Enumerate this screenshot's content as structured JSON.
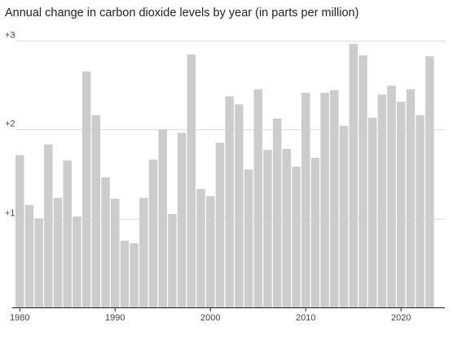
{
  "chart_data": {
    "type": "bar",
    "title": "Annual change in carbon dioxide levels by year (in parts per million)",
    "xlabel": "",
    "ylabel": "",
    "x": [
      1980,
      1981,
      1982,
      1983,
      1984,
      1985,
      1986,
      1987,
      1988,
      1989,
      1990,
      1991,
      1992,
      1993,
      1994,
      1995,
      1996,
      1997,
      1998,
      1999,
      2000,
      2001,
      2002,
      2003,
      2004,
      2005,
      2006,
      2007,
      2008,
      2009,
      2010,
      2011,
      2012,
      2013,
      2014,
      2015,
      2016,
      2017,
      2018,
      2019,
      2020,
      2021,
      2022,
      2023
    ],
    "values": [
      1.71,
      1.15,
      1.0,
      1.83,
      1.23,
      1.65,
      1.02,
      2.65,
      2.16,
      1.46,
      1.22,
      0.75,
      0.72,
      1.23,
      1.66,
      2.0,
      1.05,
      1.96,
      2.84,
      1.33,
      1.25,
      1.85,
      2.37,
      2.28,
      1.55,
      2.45,
      1.77,
      2.12,
      1.78,
      1.58,
      2.41,
      1.68,
      2.41,
      2.44,
      2.04,
      2.96,
      2.83,
      2.13,
      2.39,
      2.49,
      2.31,
      2.45,
      2.16,
      2.82
    ],
    "ylim": [
      0,
      3.2
    ],
    "y_ticks": [
      {
        "value": 1,
        "label": "+1"
      },
      {
        "value": 2,
        "label": "+2"
      },
      {
        "value": 3,
        "label": "+3"
      }
    ],
    "x_ticks": [
      1980,
      1990,
      2000,
      2010,
      2020
    ],
    "grid": true,
    "colors": {
      "bar": "#cccccc",
      "grid": "#dddddd",
      "axis": "#222222"
    }
  }
}
